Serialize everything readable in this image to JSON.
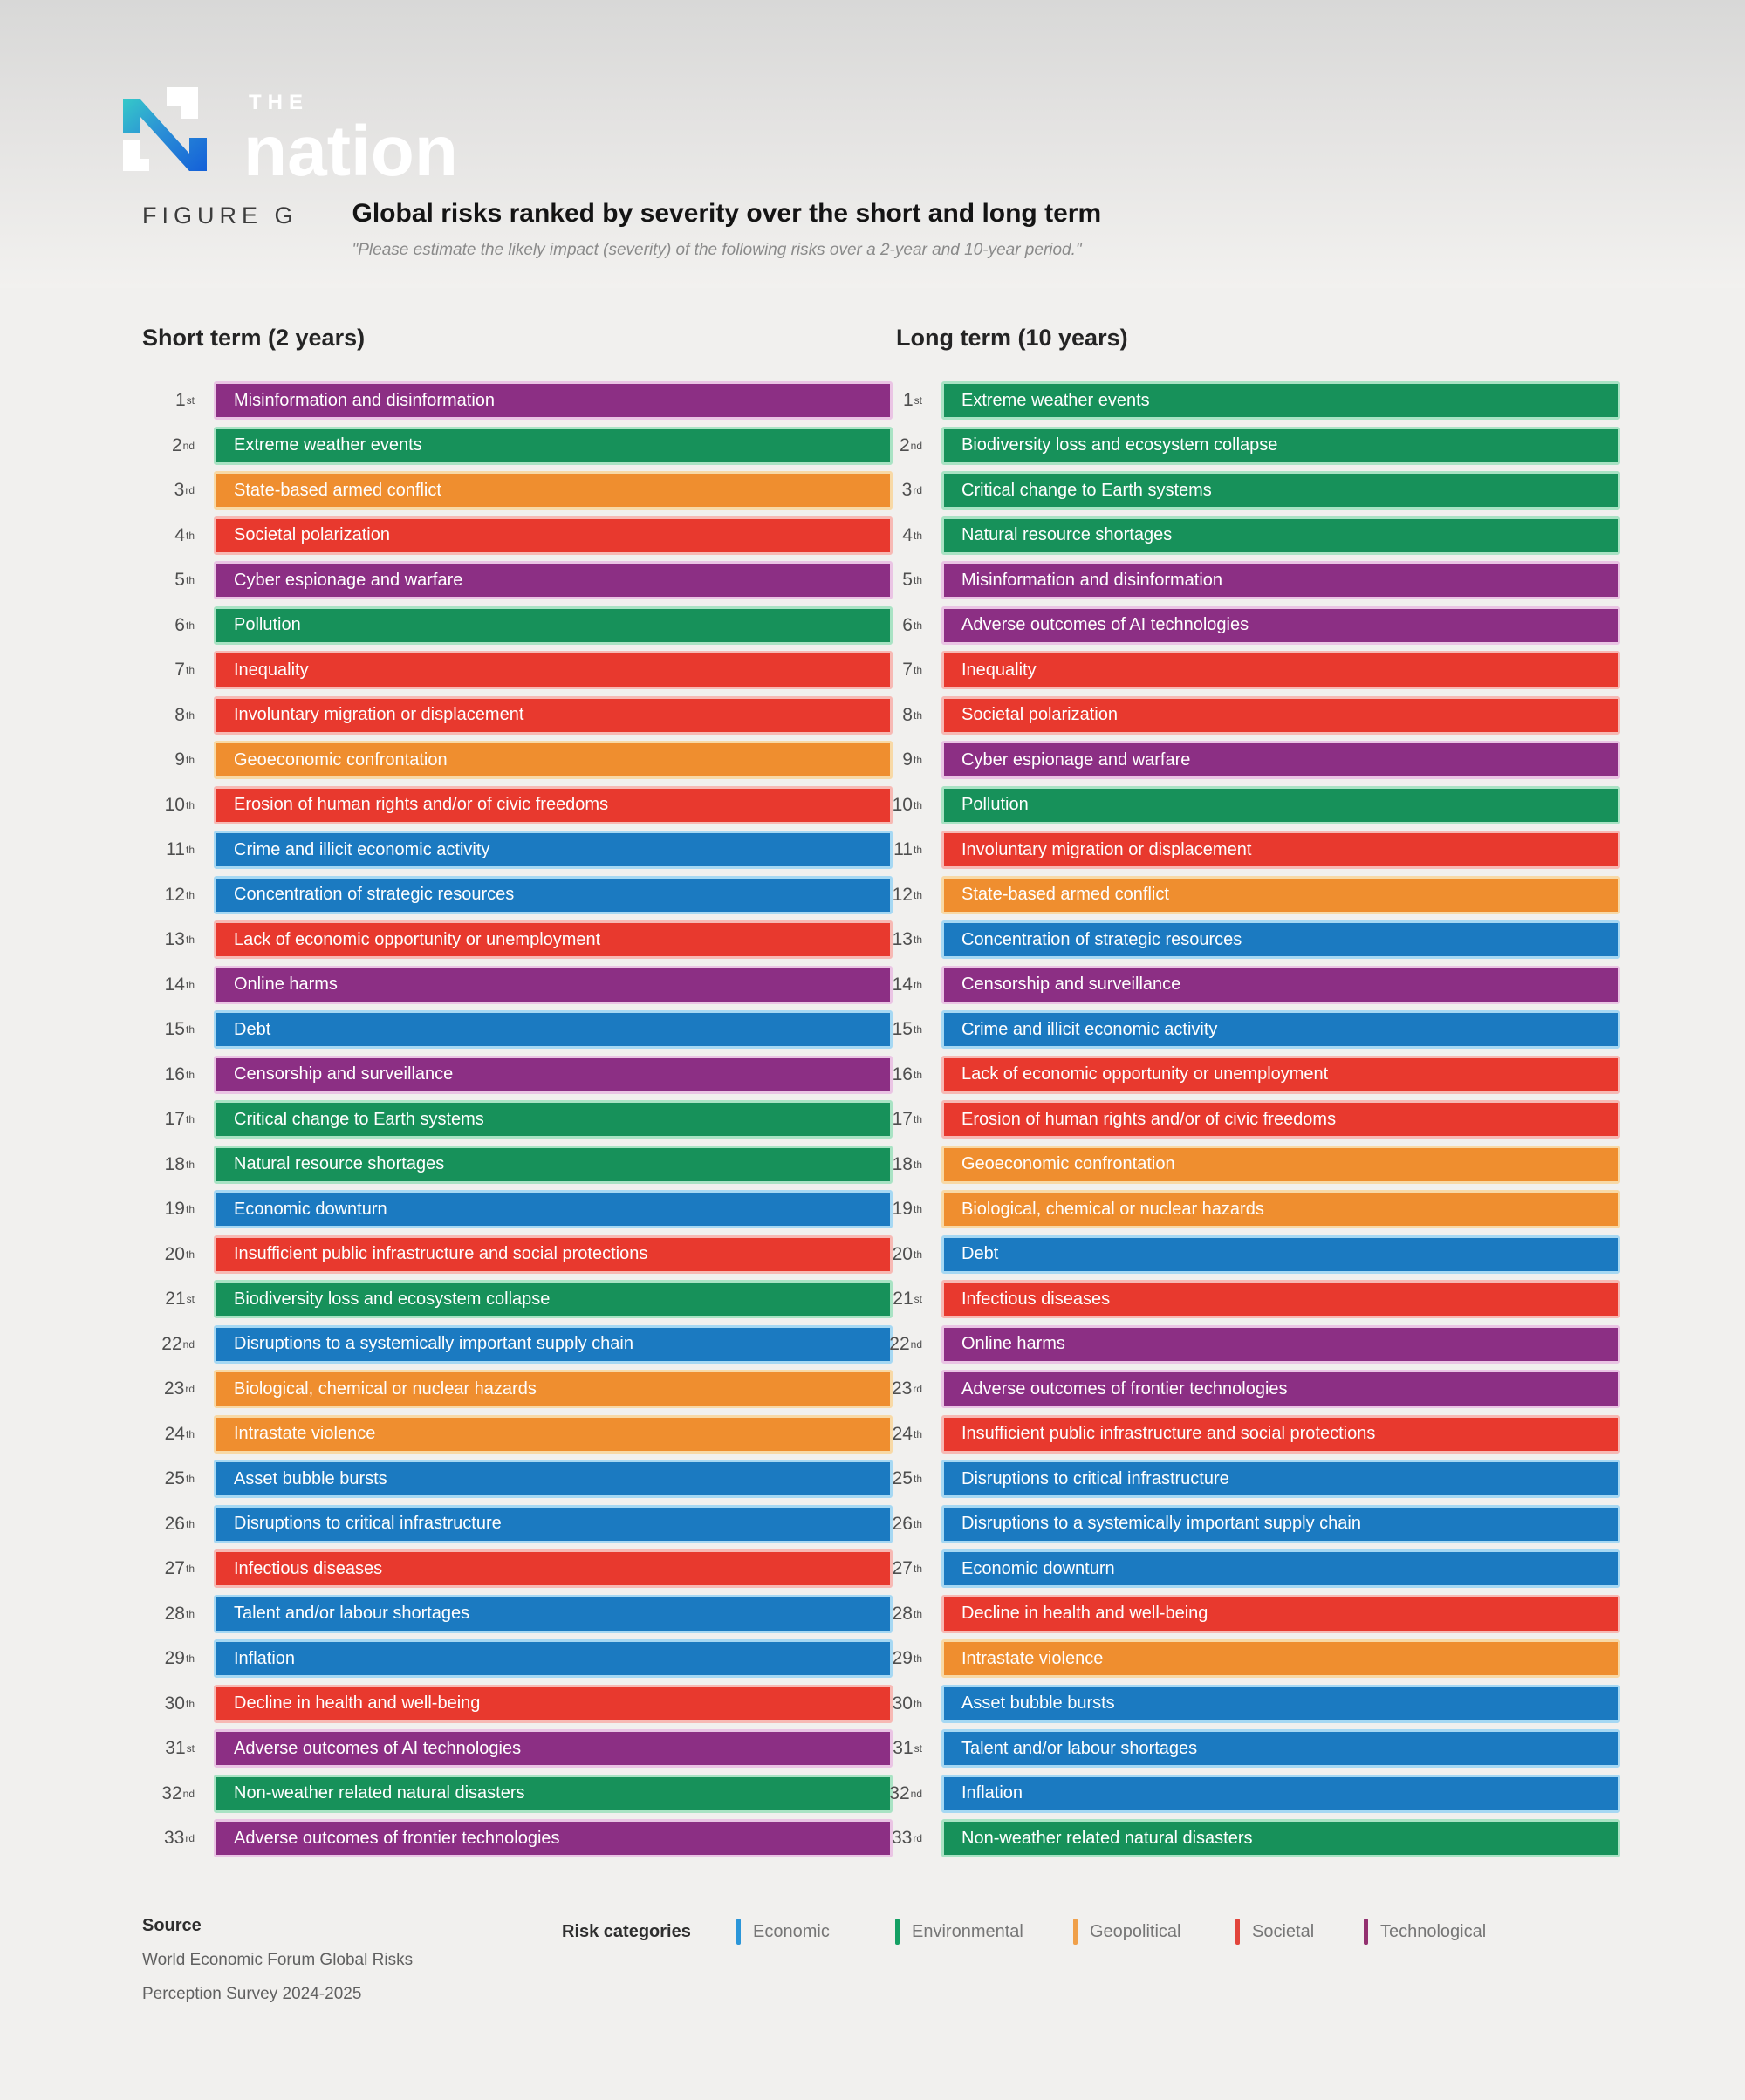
{
  "masthead": {
    "brand_the": "THE",
    "brand_nation": "nation"
  },
  "figure": {
    "label": "FIGURE G",
    "title": "Global risks ranked by severity over the short and long term",
    "subtitle": "\"Please estimate the likely impact (severity) of the following risks over a 2-year and 10-year period.\""
  },
  "palette": {
    "Economic": {
      "fill": "#1b7ac1",
      "border": "#a6d8f3",
      "legend": "#2b96d9"
    },
    "Environmental": {
      "fill": "#17915a",
      "border": "#a9e3c4",
      "legend": "#14a064"
    },
    "Geopolitical": {
      "fill": "#ef8e2f",
      "border": "#f8d9a6",
      "legend": "#f0a04a"
    },
    "Societal": {
      "fill": "#e8392e",
      "border": "#f7b9b4",
      "legend": "#e2453c"
    },
    "Technological": {
      "fill": "#8c2f84",
      "border": "#eac4e4",
      "legend": "#93306f"
    }
  },
  "chart_data": {
    "type": "ranked-bar",
    "legend_position": "bottom",
    "columns": [
      {
        "heading": "Short term (2 years)",
        "items": [
          {
            "rank": 1,
            "suffix": "st",
            "label": "Misinformation and disinformation",
            "category": "Technological"
          },
          {
            "rank": 2,
            "suffix": "nd",
            "label": "Extreme weather events",
            "category": "Environmental"
          },
          {
            "rank": 3,
            "suffix": "rd",
            "label": "State-based armed conflict",
            "category": "Geopolitical"
          },
          {
            "rank": 4,
            "suffix": "th",
            "label": "Societal polarization",
            "category": "Societal"
          },
          {
            "rank": 5,
            "suffix": "th",
            "label": "Cyber espionage and warfare",
            "category": "Technological"
          },
          {
            "rank": 6,
            "suffix": "th",
            "label": "Pollution",
            "category": "Environmental"
          },
          {
            "rank": 7,
            "suffix": "th",
            "label": "Inequality",
            "category": "Societal"
          },
          {
            "rank": 8,
            "suffix": "th",
            "label": "Involuntary migration or displacement",
            "category": "Societal"
          },
          {
            "rank": 9,
            "suffix": "th",
            "label": "Geoeconomic confrontation",
            "category": "Geopolitical"
          },
          {
            "rank": 10,
            "suffix": "th",
            "label": "Erosion of human rights and/or of civic freedoms",
            "category": "Societal"
          },
          {
            "rank": 11,
            "suffix": "th",
            "label": "Crime and illicit economic activity",
            "category": "Economic"
          },
          {
            "rank": 12,
            "suffix": "th",
            "label": "Concentration of strategic resources",
            "category": "Economic"
          },
          {
            "rank": 13,
            "suffix": "th",
            "label": "Lack of economic opportunity or unemployment",
            "category": "Societal"
          },
          {
            "rank": 14,
            "suffix": "th",
            "label": "Online harms",
            "category": "Technological"
          },
          {
            "rank": 15,
            "suffix": "th",
            "label": "Debt",
            "category": "Economic"
          },
          {
            "rank": 16,
            "suffix": "th",
            "label": "Censorship and surveillance",
            "category": "Technological"
          },
          {
            "rank": 17,
            "suffix": "th",
            "label": "Critical change to Earth systems",
            "category": "Environmental"
          },
          {
            "rank": 18,
            "suffix": "th",
            "label": "Natural resource shortages",
            "category": "Environmental"
          },
          {
            "rank": 19,
            "suffix": "th",
            "label": "Economic downturn",
            "category": "Economic"
          },
          {
            "rank": 20,
            "suffix": "th",
            "label": "Insufficient public infrastructure and social protections",
            "category": "Societal"
          },
          {
            "rank": 21,
            "suffix": "st",
            "label": "Biodiversity loss and ecosystem collapse",
            "category": "Environmental"
          },
          {
            "rank": 22,
            "suffix": "nd",
            "label": "Disruptions to a systemically important supply chain",
            "category": "Economic"
          },
          {
            "rank": 23,
            "suffix": "rd",
            "label": "Biological, chemical or nuclear hazards",
            "category": "Geopolitical"
          },
          {
            "rank": 24,
            "suffix": "th",
            "label": "Intrastate violence",
            "category": "Geopolitical"
          },
          {
            "rank": 25,
            "suffix": "th",
            "label": "Asset bubble bursts",
            "category": "Economic"
          },
          {
            "rank": 26,
            "suffix": "th",
            "label": "Disruptions to critical infrastructure",
            "category": "Economic"
          },
          {
            "rank": 27,
            "suffix": "th",
            "label": "Infectious diseases",
            "category": "Societal"
          },
          {
            "rank": 28,
            "suffix": "th",
            "label": "Talent and/or labour shortages",
            "category": "Economic"
          },
          {
            "rank": 29,
            "suffix": "th",
            "label": "Inflation",
            "category": "Economic"
          },
          {
            "rank": 30,
            "suffix": "th",
            "label": "Decline in health and well-being",
            "category": "Societal"
          },
          {
            "rank": 31,
            "suffix": "st",
            "label": "Adverse outcomes of AI technologies",
            "category": "Technological"
          },
          {
            "rank": 32,
            "suffix": "nd",
            "label": "Non-weather related natural disasters",
            "category": "Environmental"
          },
          {
            "rank": 33,
            "suffix": "rd",
            "label": "Adverse outcomes of frontier technologies",
            "category": "Technological"
          }
        ]
      },
      {
        "heading": "Long term (10 years)",
        "items": [
          {
            "rank": 1,
            "suffix": "st",
            "label": "Extreme weather events",
            "category": "Environmental"
          },
          {
            "rank": 2,
            "suffix": "nd",
            "label": "Biodiversity loss and ecosystem collapse",
            "category": "Environmental"
          },
          {
            "rank": 3,
            "suffix": "rd",
            "label": "Critical change to Earth systems",
            "category": "Environmental"
          },
          {
            "rank": 4,
            "suffix": "th",
            "label": "Natural resource shortages",
            "category": "Environmental"
          },
          {
            "rank": 5,
            "suffix": "th",
            "label": "Misinformation and disinformation",
            "category": "Technological"
          },
          {
            "rank": 6,
            "suffix": "th",
            "label": "Adverse outcomes of AI technologies",
            "category": "Technological"
          },
          {
            "rank": 7,
            "suffix": "th",
            "label": "Inequality",
            "category": "Societal"
          },
          {
            "rank": 8,
            "suffix": "th",
            "label": "Societal polarization",
            "category": "Societal"
          },
          {
            "rank": 9,
            "suffix": "th",
            "label": "Cyber espionage and warfare",
            "category": "Technological"
          },
          {
            "rank": 10,
            "suffix": "th",
            "label": "Pollution",
            "category": "Environmental"
          },
          {
            "rank": 11,
            "suffix": "th",
            "label": "Involuntary migration or displacement",
            "category": "Societal"
          },
          {
            "rank": 12,
            "suffix": "th",
            "label": "State-based armed conflict",
            "category": "Geopolitical"
          },
          {
            "rank": 13,
            "suffix": "th",
            "label": "Concentration of strategic resources",
            "category": "Economic"
          },
          {
            "rank": 14,
            "suffix": "th",
            "label": "Censorship and surveillance",
            "category": "Technological"
          },
          {
            "rank": 15,
            "suffix": "th",
            "label": "Crime and illicit economic activity",
            "category": "Economic"
          },
          {
            "rank": 16,
            "suffix": "th",
            "label": "Lack of economic opportunity or unemployment",
            "category": "Societal"
          },
          {
            "rank": 17,
            "suffix": "th",
            "label": "Erosion of human rights and/or of civic freedoms",
            "category": "Societal"
          },
          {
            "rank": 18,
            "suffix": "th",
            "label": "Geoeconomic confrontation",
            "category": "Geopolitical"
          },
          {
            "rank": 19,
            "suffix": "th",
            "label": "Biological, chemical or nuclear hazards",
            "category": "Geopolitical"
          },
          {
            "rank": 20,
            "suffix": "th",
            "label": "Debt",
            "category": "Economic"
          },
          {
            "rank": 21,
            "suffix": "st",
            "label": "Infectious diseases",
            "category": "Societal"
          },
          {
            "rank": 22,
            "suffix": "nd",
            "label": "Online harms",
            "category": "Technological"
          },
          {
            "rank": 23,
            "suffix": "rd",
            "label": "Adverse outcomes of frontier technologies",
            "category": "Technological"
          },
          {
            "rank": 24,
            "suffix": "th",
            "label": "Insufficient public infrastructure and social protections",
            "category": "Societal"
          },
          {
            "rank": 25,
            "suffix": "th",
            "label": "Disruptions to critical infrastructure",
            "category": "Economic"
          },
          {
            "rank": 26,
            "suffix": "th",
            "label": "Disruptions to a systemically important supply chain",
            "category": "Economic"
          },
          {
            "rank": 27,
            "suffix": "th",
            "label": "Economic downturn",
            "category": "Economic"
          },
          {
            "rank": 28,
            "suffix": "th",
            "label": "Decline in health and well-being",
            "category": "Societal"
          },
          {
            "rank": 29,
            "suffix": "th",
            "label": "Intrastate violence",
            "category": "Geopolitical"
          },
          {
            "rank": 30,
            "suffix": "th",
            "label": "Asset bubble bursts",
            "category": "Economic"
          },
          {
            "rank": 31,
            "suffix": "st",
            "label": "Talent and/or labour shortages",
            "category": "Economic"
          },
          {
            "rank": 32,
            "suffix": "nd",
            "label": "Inflation",
            "category": "Economic"
          },
          {
            "rank": 33,
            "suffix": "rd",
            "label": "Non-weather related natural disasters",
            "category": "Environmental"
          }
        ]
      }
    ]
  },
  "legend": {
    "title": "Risk categories",
    "items": [
      {
        "label": "Economic",
        "category": "Economic"
      },
      {
        "label": "Environmental",
        "category": "Environmental"
      },
      {
        "label": "Geopolitical",
        "category": "Geopolitical"
      },
      {
        "label": "Societal",
        "category": "Societal"
      },
      {
        "label": "Technological",
        "category": "Technological"
      }
    ]
  },
  "source": {
    "heading": "Source",
    "lines": [
      "World Economic Forum Global Risks",
      "Perception Survey 2024-2025"
    ]
  }
}
